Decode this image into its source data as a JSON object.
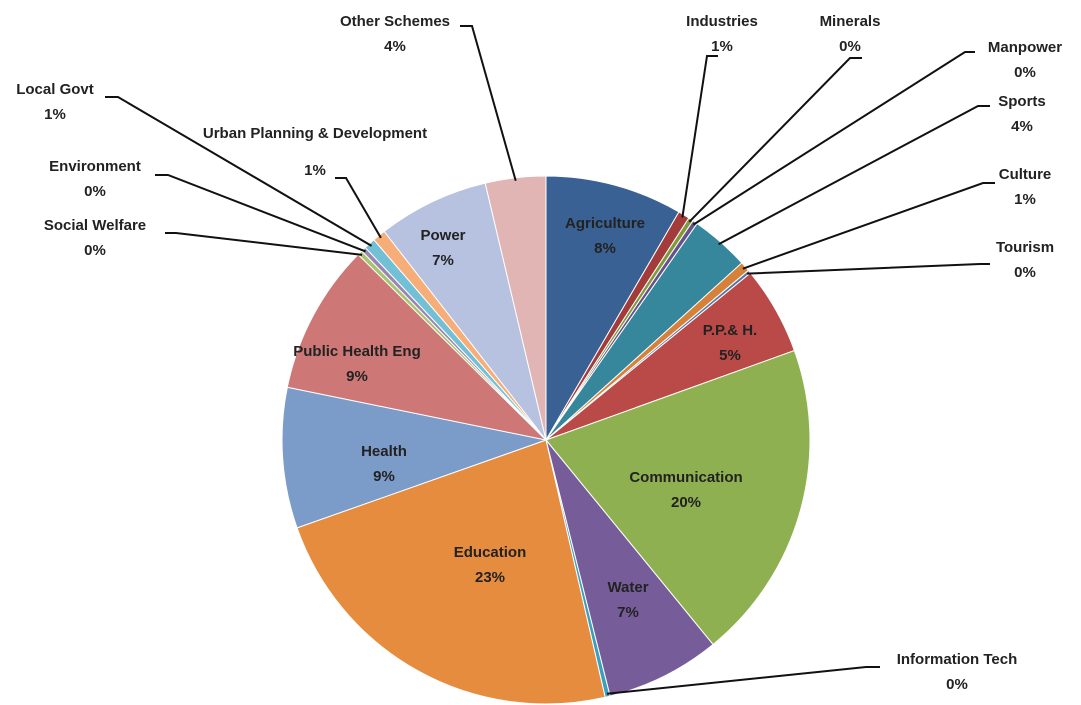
{
  "chart_data": {
    "type": "pie",
    "categories": [
      "Agriculture",
      "Industries",
      "Minerals",
      "Manpower",
      "Sports",
      "Culture",
      "Tourism",
      "P.P.& H.",
      "Communication",
      "Water",
      "Information Tech",
      "Education",
      "Health",
      "Public Health Eng",
      "Social Welfare",
      "Environment",
      "Local Govt",
      "Urban Planning & Development",
      "Power",
      "Other Schemes"
    ],
    "values": [
      8.4,
      0.7,
      0.3,
      0.3,
      3.6,
      0.6,
      0.2,
      5.4,
      19.6,
      7.0,
      0.3,
      23.2,
      8.6,
      9.2,
      0.3,
      0.3,
      0.7,
      0.8,
      6.8,
      3.7
    ],
    "value_labels": [
      "8%",
      "1%",
      "0%",
      "0%",
      "4%",
      "1%",
      "0%",
      "5%",
      "20%",
      "7%",
      "0%",
      "23%",
      "9%",
      "9%",
      "0%",
      "0%",
      "1%",
      "1%",
      "7%",
      "4%"
    ],
    "colors": [
      "#3a6193",
      "#a23b3a",
      "#7e9a3c",
      "#66518a",
      "#37879c",
      "#d5813a",
      "#5475a5",
      "#b94a48",
      "#8fb050",
      "#765c98",
      "#3aa0c0",
      "#e68c3f",
      "#7b9bc9",
      "#cd7876",
      "#a9c46e",
      "#9a86b5",
      "#73c0d6",
      "#f6ad77",
      "#b7c2e0",
      "#e0b5b4"
    ]
  }
}
